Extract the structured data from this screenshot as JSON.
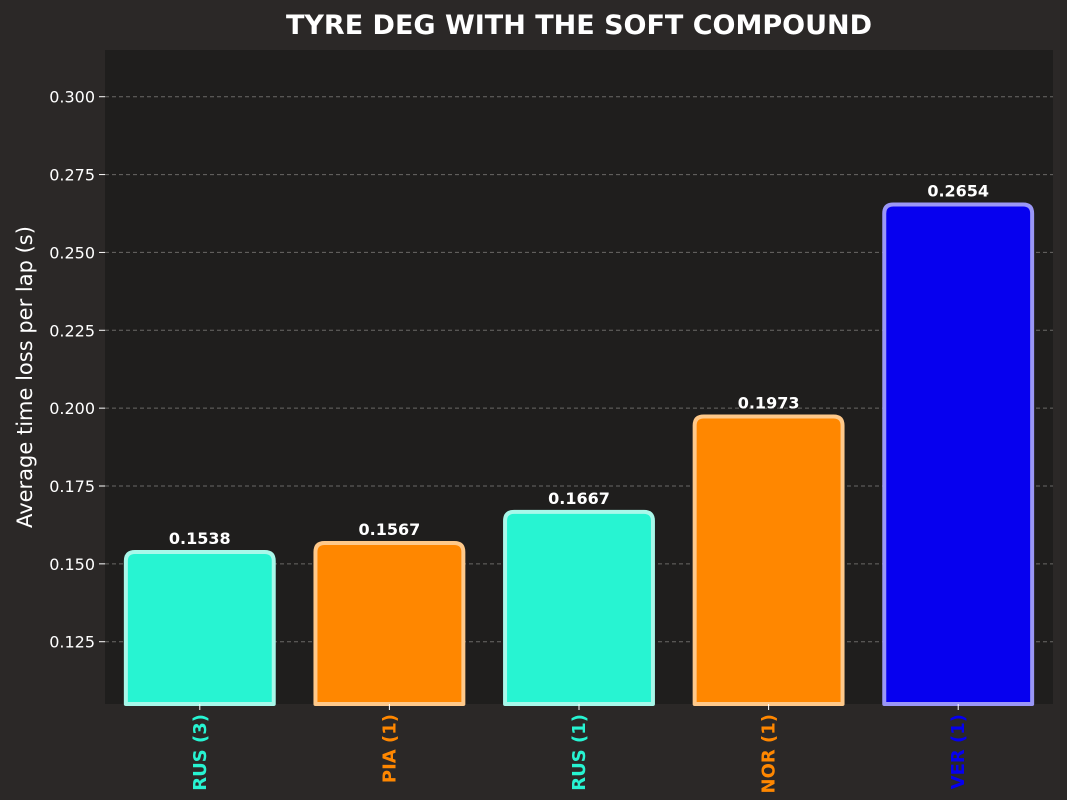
{
  "chart_data": {
    "type": "bar",
    "title": "TYRE DEG WITH THE SOFT COMPOUND",
    "xlabel": "",
    "ylabel": "Average time loss per lap (s)",
    "ylim": [
      0.105,
      0.315
    ],
    "yticks": [
      "0.125",
      "0.150",
      "0.175",
      "0.200",
      "0.225",
      "0.250",
      "0.275",
      "0.300"
    ],
    "grid": true,
    "categories": [
      "RUS (3)",
      "PIA (1)",
      "RUS (1)",
      "NOR (1)",
      "VER (1)"
    ],
    "values": [
      0.1538,
      0.1567,
      0.1667,
      0.1973,
      0.2654
    ],
    "value_labels": [
      "0.1538",
      "0.1567",
      "0.1667",
      "0.1973",
      "0.2654"
    ],
    "colors": [
      "#27f4d2",
      "#ff8700",
      "#27f4d2",
      "#ff8700",
      "#0600ef"
    ],
    "edge_colors": [
      "#a8f8ea",
      "#ffc98a",
      "#a8f8ea",
      "#ffc98a",
      "#9a97f7"
    ],
    "background": "#2b2827",
    "plot_background": "#1f1e1d"
  }
}
